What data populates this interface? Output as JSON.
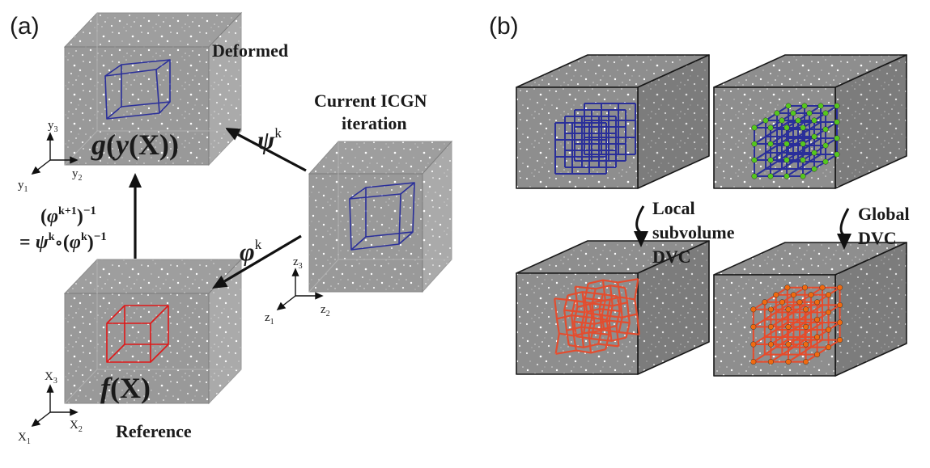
{
  "panels": {
    "a": {
      "label": "(a)"
    },
    "b": {
      "label": "(b)"
    }
  },
  "panel_a": {
    "deformed_label": "Deformed",
    "reference_label": "Reference",
    "current_label_line1": "Current ICGN",
    "current_label_line2": "iteration",
    "deformed_function": {
      "g": "g",
      "open": "(",
      "y": "y",
      "open2": "(",
      "X": "X",
      "close": "))"
    },
    "reference_function": {
      "f": "f",
      "open": "(",
      "X": "X",
      "close": ")"
    },
    "psi_label": {
      "symbol": "ψ",
      "sup": "k"
    },
    "phi_label": {
      "symbol": "φ",
      "sup": "k"
    },
    "composition_line1": {
      "open": "(",
      "phi": "φ",
      "sup": "k+1",
      "close": ")",
      "exp": "−1"
    },
    "composition_line2": {
      "eq": "= ",
      "psi": "ψ",
      "sup1": "k",
      "circ": "∘",
      "open": "(",
      "phi": "φ",
      "sup2": "k",
      "close": ")",
      "exp": "−1"
    },
    "axes_deformed": {
      "v": "y",
      "v_sub": "3",
      "h": "y",
      "h_sub": "2",
      "d": "y",
      "d_sub": "1"
    },
    "axes_current": {
      "v": "z",
      "v_sub": "3",
      "h": "z",
      "h_sub": "2",
      "d": "z",
      "d_sub": "1"
    },
    "axes_reference": {
      "v": "X",
      "v_sub": "3",
      "h": "X",
      "h_sub": "2",
      "d": "X",
      "d_sub": "1"
    }
  },
  "panel_b": {
    "local_line1": "Local",
    "local_line2": "subvolume",
    "local_line3": "DVC",
    "global_line1": "Global",
    "global_line2": "DVC"
  },
  "colors": {
    "subvolume_blue": "#2a2f9a",
    "reference_red": "#e01818",
    "deformed_red": "#e84a2a",
    "node_green": "#55c81e",
    "node_orange": "#f06a10",
    "cube_gray": "#8e8e8e"
  }
}
